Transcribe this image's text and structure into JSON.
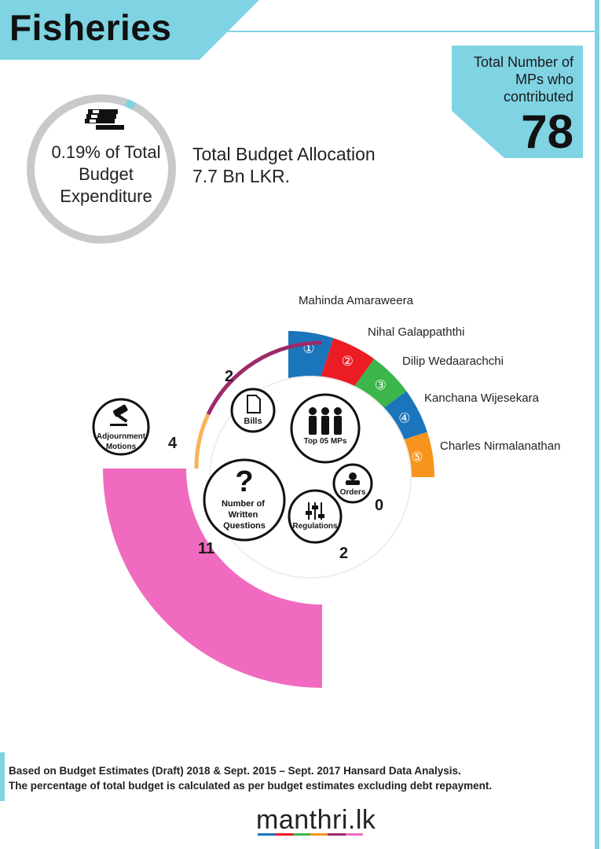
{
  "header": {
    "title": "Fisheries"
  },
  "mp_box": {
    "label": "Total Number of MPs who contributed",
    "count": "78"
  },
  "budget": {
    "share_text": "0.19% of Total Budget Expenditure",
    "share_percent": 0.19,
    "allocation_label": "Total Budget Allocation",
    "allocation_value": "7.7 Bn LKR.",
    "icon": "money-stack-icon"
  },
  "top_mps": {
    "center_label": "Top 05 MPs",
    "icon": "people-icon",
    "items": [
      {
        "rank": "①",
        "name": "Mahinda Amaraweera",
        "color": "#1b75bb"
      },
      {
        "rank": "②",
        "name": "Nihal Galappaththi",
        "color": "#ec1c24"
      },
      {
        "rank": "③",
        "name": "Dilip Wedaarachchi",
        "color": "#3cb54a"
      },
      {
        "rank": "④",
        "name": "Kanchana Wijesekara",
        "color": "#1b75bb"
      },
      {
        "rank": "⑤",
        "name": "Charles Nirmalanathan",
        "color": "#f7941d"
      }
    ]
  },
  "activities": {
    "written_questions": {
      "label": "Number of Written Questions",
      "value": "11",
      "color": "#f06bc0",
      "icon": "question-mark-icon"
    },
    "adjournment_motions": {
      "label": "Adjournment Motions",
      "value": "4",
      "color": "#f8b457",
      "icon": "gavel-icon"
    },
    "bills": {
      "label": "Bills",
      "value": "2",
      "color": "#9b2a6a",
      "icon": "document-icon"
    },
    "orders": {
      "label": "Orders",
      "value": "0",
      "color": "#6a3b8f",
      "icon": "stamp-icon"
    },
    "regulations": {
      "label": "Regulations",
      "value": "2",
      "color": "#8a1d4f",
      "icon": "sliders-icon"
    }
  },
  "footer": {
    "line1": "Based on Budget Estimates (Draft) 2018 & Sept. 2015 – Sept. 2017 Hansard Data Analysis.",
    "line2": "The percentage of  total budget is calculated as per budget estimates excluding debt repayment."
  },
  "logo": {
    "text": "manthri.lk",
    "colors": [
      "#1b75bb",
      "#ec1c24",
      "#3cb54a",
      "#f7941d",
      "#9b2a6a",
      "#f06bc0"
    ]
  }
}
